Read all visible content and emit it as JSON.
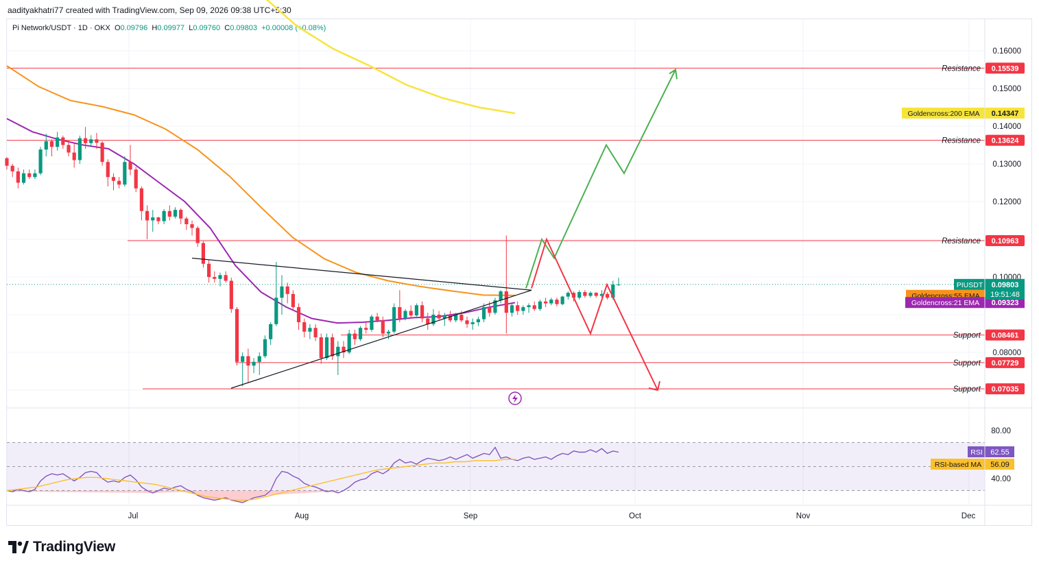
{
  "header": {
    "credit": "aadityakhatri77 created with TradingView.com, Sep 09, 2026 09:38 UTC+5:30",
    "symbol": "Pi Network/USDT · 1D · OKX",
    "o_label": "O",
    "o": "0.09796",
    "h_label": "H",
    "h": "0.09977",
    "l_label": "L",
    "l": "0.09760",
    "c_label": "C",
    "c": "0.09803",
    "change": "+0.00008 (+0.08%)"
  },
  "brand": {
    "name": "TradingView"
  },
  "colors": {
    "up": "#089981",
    "down": "#f23645",
    "ema200": "#f7e43b",
    "ema55": "#f7931a",
    "ema21": "#9c27b0",
    "resistance": "#f23645",
    "projection_up": "#4caf50",
    "projection_down": "#f23645",
    "rsi": "#7e57c2",
    "rsi_ma": "#fbc02d"
  },
  "chart_data": [
    {
      "type": "candlestick",
      "symbol": "PIUSDT",
      "timeframe": "1D",
      "ylim": [
        0.0685,
        0.166
      ],
      "x_ticks": [
        "Jul",
        "Aug",
        "Sep",
        "Oct",
        "Nov",
        "Dec"
      ],
      "y_ticks": [
        "0.16000",
        "0.15000",
        "0.14000",
        "0.13000",
        "0.12000",
        "0.10000",
        "0.08000"
      ],
      "last_price": {
        "label": "PIUSDT",
        "value": "0.09803",
        "countdown": "19:51:48"
      },
      "levels": [
        {
          "kind": "Resistance",
          "value": "0.15539"
        },
        {
          "kind": "Resistance",
          "value": "0.13624"
        },
        {
          "kind": "Resistance",
          "value": "0.10963"
        },
        {
          "kind": "Support",
          "value": "0.08461"
        },
        {
          "kind": "Support",
          "value": "0.07729"
        },
        {
          "kind": "Support",
          "value": "0.07035"
        }
      ],
      "indicators": [
        {
          "name": "Goldencross:200 EMA",
          "value": "0.14347"
        },
        {
          "name": "Goldencross:55 EMA",
          "value": "0.09513"
        },
        {
          "name": "Goldencross:21 EMA",
          "value": "0.09323"
        }
      ],
      "candles_ohlc": [
        [
          0.1315,
          0.1318,
          0.1285,
          0.1295
        ],
        [
          0.1295,
          0.13,
          0.1265,
          0.128
        ],
        [
          0.128,
          0.129,
          0.1235,
          0.125
        ],
        [
          0.125,
          0.1285,
          0.1245,
          0.1275
        ],
        [
          0.1275,
          0.1285,
          0.126,
          0.1265
        ],
        [
          0.1265,
          0.1285,
          0.126,
          0.1275
        ],
        [
          0.1275,
          0.1345,
          0.127,
          0.1338
        ],
        [
          0.1338,
          0.138,
          0.132,
          0.136
        ],
        [
          0.136,
          0.1365,
          0.132,
          0.1345
        ],
        [
          0.1345,
          0.1385,
          0.1335,
          0.137
        ],
        [
          0.137,
          0.1375,
          0.134,
          0.135
        ],
        [
          0.135,
          0.1362,
          0.132,
          0.133
        ],
        [
          0.133,
          0.1355,
          0.129,
          0.131
        ],
        [
          0.131,
          0.1375,
          0.13,
          0.1368
        ],
        [
          0.1368,
          0.1398,
          0.134,
          0.1355
        ],
        [
          0.1355,
          0.1376,
          0.1345,
          0.1365
        ],
        [
          0.1365,
          0.1382,
          0.134,
          0.1356
        ],
        [
          0.1356,
          0.136,
          0.1295,
          0.1305
        ],
        [
          0.1305,
          0.1312,
          0.124,
          0.1265
        ],
        [
          0.1265,
          0.1275,
          0.123,
          0.1255
        ],
        [
          0.1255,
          0.1265,
          0.1235,
          0.1245
        ],
        [
          0.1245,
          0.132,
          0.124,
          0.1305
        ],
        [
          0.1305,
          0.135,
          0.127,
          0.1285
        ],
        [
          0.1285,
          0.1292,
          0.1225,
          0.1235
        ],
        [
          0.1235,
          0.124,
          0.115,
          0.1175
        ],
        [
          0.1175,
          0.119,
          0.11,
          0.115
        ],
        [
          0.115,
          0.1178,
          0.112,
          0.1158
        ],
        [
          0.1158,
          0.116,
          0.114,
          0.1148
        ],
        [
          0.1148,
          0.118,
          0.114,
          0.1175
        ],
        [
          0.1175,
          0.119,
          0.115,
          0.116
        ],
        [
          0.116,
          0.1185,
          0.1155,
          0.1178
        ],
        [
          0.1178,
          0.1182,
          0.114,
          0.1155
        ],
        [
          0.1155,
          0.116,
          0.1125,
          0.114
        ],
        [
          0.114,
          0.115,
          0.111,
          0.113
        ],
        [
          0.113,
          0.1135,
          0.108,
          0.109
        ],
        [
          0.109,
          0.1095,
          0.1025,
          0.1035
        ],
        [
          0.1035,
          0.1045,
          0.0985,
          0.1
        ],
        [
          0.1,
          0.1015,
          0.0985,
          0.0995
        ],
        [
          0.0995,
          0.1012,
          0.0975,
          0.1005
        ],
        [
          0.1005,
          0.1015,
          0.0985,
          0.099
        ],
        [
          0.099,
          0.0998,
          0.0905,
          0.0915
        ],
        [
          0.0915,
          0.092,
          0.0765,
          0.0775
        ],
        [
          0.0775,
          0.08,
          0.071,
          0.079
        ],
        [
          0.079,
          0.081,
          0.072,
          0.0765
        ],
        [
          0.0765,
          0.0785,
          0.0745,
          0.0775
        ],
        [
          0.0775,
          0.08,
          0.074,
          0.079
        ],
        [
          0.079,
          0.0845,
          0.0785,
          0.0835
        ],
        [
          0.0835,
          0.088,
          0.082,
          0.0875
        ],
        [
          0.0875,
          0.104,
          0.087,
          0.0945
        ],
        [
          0.0945,
          0.1005,
          0.09,
          0.0975
        ],
        [
          0.0975,
          0.0985,
          0.093,
          0.0955
        ],
        [
          0.0955,
          0.0965,
          0.091,
          0.092
        ],
        [
          0.092,
          0.093,
          0.086,
          0.088
        ],
        [
          0.088,
          0.089,
          0.084,
          0.0855
        ],
        [
          0.0855,
          0.0875,
          0.0835,
          0.0865
        ],
        [
          0.0865,
          0.0875,
          0.083,
          0.084
        ],
        [
          0.084,
          0.085,
          0.077,
          0.0785
        ],
        [
          0.0785,
          0.085,
          0.078,
          0.084
        ],
        [
          0.084,
          0.085,
          0.078,
          0.079
        ],
        [
          0.079,
          0.083,
          0.074,
          0.0815
        ],
        [
          0.0815,
          0.083,
          0.0785,
          0.08
        ],
        [
          0.08,
          0.086,
          0.0795,
          0.085
        ],
        [
          0.085,
          0.086,
          0.082,
          0.0835
        ],
        [
          0.0835,
          0.087,
          0.083,
          0.0865
        ],
        [
          0.0865,
          0.088,
          0.085,
          0.086
        ],
        [
          0.086,
          0.09,
          0.0855,
          0.0895
        ],
        [
          0.0895,
          0.0905,
          0.088,
          0.0885
        ],
        [
          0.0885,
          0.0895,
          0.084,
          0.085
        ],
        [
          0.085,
          0.086,
          0.0835,
          0.0855
        ],
        [
          0.0855,
          0.093,
          0.085,
          0.092
        ],
        [
          0.092,
          0.0965,
          0.088,
          0.089
        ],
        [
          0.089,
          0.0915,
          0.0885,
          0.091
        ],
        [
          0.091,
          0.0925,
          0.089,
          0.0898
        ],
        [
          0.0898,
          0.093,
          0.0895,
          0.0925
        ],
        [
          0.0925,
          0.0935,
          0.088,
          0.089
        ],
        [
          0.089,
          0.0905,
          0.086,
          0.0875
        ],
        [
          0.0875,
          0.0915,
          0.087,
          0.09
        ],
        [
          0.09,
          0.091,
          0.0885,
          0.089
        ],
        [
          0.089,
          0.0905,
          0.087,
          0.0898
        ],
        [
          0.0898,
          0.091,
          0.088,
          0.0885
        ],
        [
          0.0885,
          0.0905,
          0.088,
          0.09
        ],
        [
          0.09,
          0.091,
          0.088,
          0.0885
        ],
        [
          0.0885,
          0.0895,
          0.0865,
          0.0875
        ],
        [
          0.0875,
          0.089,
          0.086,
          0.088
        ],
        [
          0.088,
          0.0895,
          0.087,
          0.0888
        ],
        [
          0.0888,
          0.093,
          0.088,
          0.092
        ],
        [
          0.092,
          0.0935,
          0.0895,
          0.0905
        ],
        [
          0.0905,
          0.0945,
          0.09,
          0.0938
        ],
        [
          0.0938,
          0.0965,
          0.093,
          0.0962
        ],
        [
          0.0962,
          0.111,
          0.085,
          0.0905
        ],
        [
          0.0905,
          0.093,
          0.0895,
          0.0925
        ],
        [
          0.0925,
          0.0935,
          0.09,
          0.091
        ],
        [
          0.091,
          0.0925,
          0.09,
          0.092
        ],
        [
          0.092,
          0.093,
          0.0905,
          0.0925
        ],
        [
          0.0925,
          0.0935,
          0.091,
          0.0915
        ],
        [
          0.0915,
          0.094,
          0.091,
          0.0935
        ],
        [
          0.0935,
          0.0945,
          0.092,
          0.093
        ],
        [
          0.093,
          0.0945,
          0.0925,
          0.094
        ],
        [
          0.094,
          0.0945,
          0.0922,
          0.0928
        ],
        [
          0.0928,
          0.095,
          0.0925,
          0.0948
        ],
        [
          0.0948,
          0.0962,
          0.094,
          0.0958
        ],
        [
          0.0958,
          0.0962,
          0.0935,
          0.0945
        ],
        [
          0.0945,
          0.0965,
          0.094,
          0.096
        ],
        [
          0.096,
          0.0965,
          0.0945,
          0.095
        ],
        [
          0.095,
          0.0962,
          0.0945,
          0.0958
        ],
        [
          0.0958,
          0.096,
          0.0945,
          0.095
        ],
        [
          0.095,
          0.0965,
          0.0945,
          0.0955
        ],
        [
          0.0955,
          0.096,
          0.094,
          0.0945
        ],
        [
          0.0945,
          0.099,
          0.094,
          0.098
        ],
        [
          0.098,
          0.0998,
          0.0976,
          0.098
        ]
      ],
      "ema200": [
        0.175,
        0.1665,
        0.1605,
        0.156,
        0.151,
        0.1475,
        0.145,
        0.1434
      ],
      "ema55": [
        0.156,
        0.1505,
        0.1468,
        0.1452,
        0.143,
        0.1392,
        0.1338,
        0.1268,
        0.1185,
        0.1105,
        0.1048,
        0.1012,
        0.099,
        0.0975,
        0.0963,
        0.0952,
        0.0951
      ],
      "ema21": [
        0.142,
        0.1385,
        0.1365,
        0.135,
        0.134,
        0.13,
        0.125,
        0.12,
        0.113,
        0.103,
        0.096,
        0.092,
        0.089,
        0.0878,
        0.088,
        0.0885,
        0.0892,
        0.0895,
        0.0905,
        0.092,
        0.0932
      ],
      "triangle": {
        "upper": [
          0.105,
          0.0965
        ],
        "lower": [
          0.0705,
          0.0965
        ]
      },
      "projection_bullish": [
        0.097,
        0.11,
        0.105,
        0.135,
        0.1275,
        0.155
      ],
      "projection_bearish": [
        0.097,
        0.11,
        0.085,
        0.098,
        0.07
      ]
    },
    {
      "type": "line",
      "name": "RSI",
      "ylim": [
        20,
        85
      ],
      "y_ticks": [
        "80.00",
        "40.00"
      ],
      "bands": {
        "upper": 70,
        "middle": 50,
        "lower": 30
      },
      "series": [
        {
          "name": "RSI",
          "value": "62.55",
          "values": [
            30,
            29,
            31,
            30,
            29,
            31,
            38,
            42,
            44,
            43,
            44,
            41,
            38,
            41,
            45,
            46,
            45,
            40,
            37,
            38,
            37,
            41,
            43,
            39,
            33,
            30,
            28,
            30,
            32,
            31,
            33,
            34,
            31,
            29,
            26,
            24,
            23,
            22,
            23,
            24,
            22,
            21,
            20,
            22,
            24,
            25,
            26,
            30,
            40,
            46,
            45,
            42,
            40,
            36,
            34,
            33,
            31,
            29,
            30,
            28,
            30,
            33,
            37,
            39,
            40,
            44,
            46,
            44,
            47,
            53,
            56,
            53,
            54,
            52,
            55,
            57,
            56,
            55,
            56,
            58,
            56,
            58,
            60,
            57,
            59,
            61,
            60,
            66,
            57,
            58,
            56,
            55,
            57,
            58,
            56,
            57,
            58,
            56,
            59,
            61,
            60,
            63,
            62,
            62,
            64,
            62,
            65,
            61,
            63,
            62
          ]
        },
        {
          "name": "RSI-based MA",
          "value": "56.09",
          "values": [
            30,
            31,
            32,
            33,
            35,
            37,
            39,
            40,
            41,
            41,
            40,
            39,
            38,
            37,
            36,
            35,
            33,
            31,
            29,
            27,
            25,
            24,
            23,
            22,
            22,
            23,
            25,
            27,
            29,
            31,
            33,
            35,
            37,
            39,
            41,
            43,
            45,
            47,
            48,
            49,
            50,
            51,
            52,
            53,
            53,
            54,
            54,
            55,
            55,
            55,
            56,
            56
          ]
        }
      ]
    }
  ]
}
